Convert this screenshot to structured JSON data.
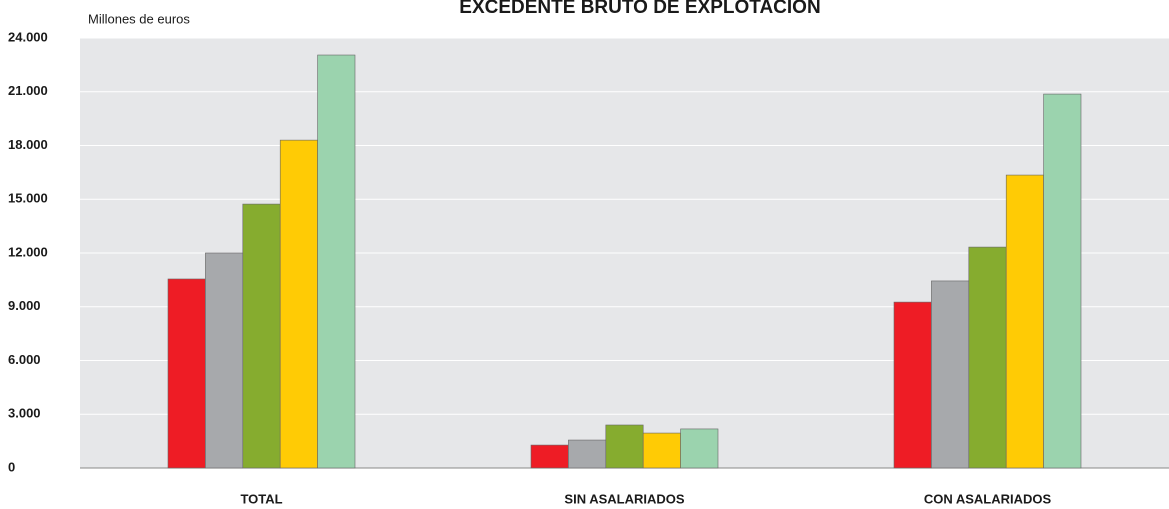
{
  "chart_data": {
    "type": "bar",
    "title": "EXCEDENTE BRUTO DE EXPLOTACIÓN",
    "y_label": "Millones de euros",
    "categories": [
      "TOTAL",
      "SIN ASALARIADOS",
      "CON ASALARIADOS"
    ],
    "series": [
      {
        "color": "#ee1c25",
        "values": [
          10550,
          1280,
          9260
        ]
      },
      {
        "color": "#a7a9ac",
        "values": [
          12000,
          1560,
          10440
        ]
      },
      {
        "color": "#86ac2f",
        "values": [
          14730,
          2400,
          12330
        ]
      },
      {
        "color": "#ffcb05",
        "values": [
          18300,
          1950,
          16350
        ]
      },
      {
        "color": "#9bd3ae",
        "values": [
          23050,
          2180,
          20870
        ]
      }
    ],
    "ylim": [
      0,
      24000
    ],
    "yticks": [
      0,
      {
        "value": 3000,
        "label": "3.000"
      },
      {
        "value": 6000,
        "label": "6.000"
      },
      {
        "value": 9000,
        "label": "9.000"
      },
      {
        "value": 12000,
        "label": "12.000"
      },
      {
        "value": 15000,
        "label": "15.000"
      },
      {
        "value": 18000,
        "label": "18.000"
      },
      {
        "value": 21000,
        "label": "21.000"
      },
      {
        "value": 24000,
        "label": "24.000"
      }
    ],
    "grid": true
  }
}
